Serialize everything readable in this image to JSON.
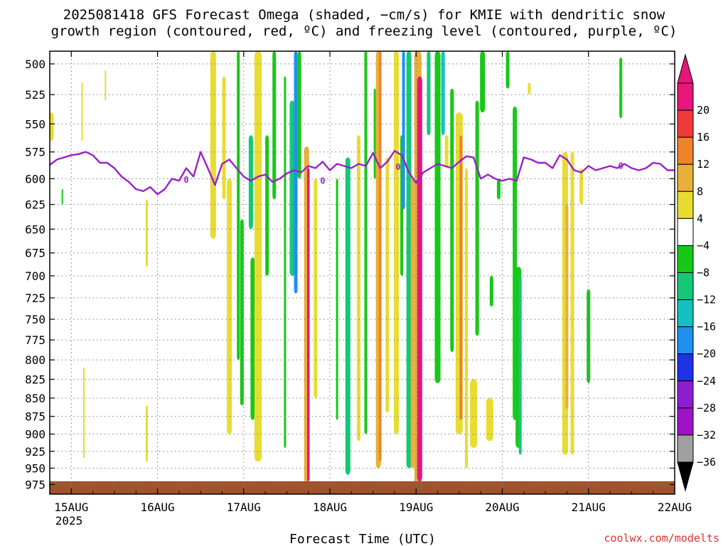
{
  "page": {
    "title_line1": "2025081418 GFS Forecast Omega (shaded, −cm/s) for KMIE with dendritic snow",
    "title_line2": "growth region (contoured, red, ºC) and freezing level (contoured, purple, ºC)",
    "credit": "coolwx.com/modelts"
  },
  "chart_data": {
    "type": "heatmap",
    "title": "2025081418 GFS Forecast Omega (shaded, −cm/s) for KMIE with dendritic snow growth region (contoured, red, ºC) and freezing level (contoured, purple, ºC)",
    "xlabel": "Forecast Time (UTC)",
    "ylabel": "",
    "x_tick_labels": [
      "15AUG",
      "16AUG",
      "17AUG",
      "18AUG",
      "19AUG",
      "20AUG",
      "21AUG",
      "22AUG"
    ],
    "x_year_label": "2025",
    "xlim_hours": [
      -6,
      168
    ],
    "y_ticks": [
      500,
      525,
      550,
      575,
      600,
      625,
      650,
      675,
      700,
      725,
      750,
      775,
      800,
      825,
      850,
      875,
      900,
      925,
      950,
      975
    ],
    "ylim": [
      490,
      990
    ],
    "y_scale": "log-pressure",
    "grid": true,
    "colorbar": {
      "labels": [
        "20",
        "16",
        "12",
        "8",
        "4",
        "−4",
        "−8",
        "−12",
        "−16",
        "−20",
        "−24",
        "−28",
        "−32",
        "−36"
      ],
      "bins": [
        {
          "from": 20,
          "to": 24,
          "color": "#e8157a"
        },
        {
          "from": 16,
          "to": 20,
          "color": "#f03a3a"
        },
        {
          "from": 12,
          "to": 16,
          "color": "#f0822a"
        },
        {
          "from": 8,
          "to": 12,
          "color": "#e8b038"
        },
        {
          "from": 4,
          "to": 8,
          "color": "#e8dc32"
        },
        {
          "from": -4,
          "to": 4,
          "color": "#ffffff"
        },
        {
          "from": -8,
          "to": -4,
          "color": "#18c818"
        },
        {
          "from": -12,
          "to": -8,
          "color": "#14c878"
        },
        {
          "from": -16,
          "to": -12,
          "color": "#14c0c0"
        },
        {
          "from": -20,
          "to": -16,
          "color": "#1e90f0"
        },
        {
          "from": -24,
          "to": -20,
          "color": "#1e32e6"
        },
        {
          "from": -28,
          "to": -24,
          "color": "#8c1ed2"
        },
        {
          "from": -32,
          "to": -28,
          "color": "#a012c8"
        },
        {
          "from": -36,
          "to": -32,
          "color": "#a0a0a0"
        }
      ],
      "over_color": "#e8157a",
      "under_color": "#000000"
    },
    "colors": {
      "freezing_level": "#9b1fc8",
      "ground": "#a0522d",
      "grid": "#7a7a7a"
    },
    "freezing_level_label": "0",
    "freezing_level": {
      "hour": [
        -6,
        -4,
        -2,
        0,
        2,
        4,
        6,
        8,
        10,
        12,
        14,
        16,
        18,
        20,
        22,
        24,
        26,
        28,
        30,
        32,
        34,
        36,
        38,
        40,
        42,
        44,
        46,
        48,
        50,
        52,
        54,
        56,
        58,
        60,
        62,
        64,
        66,
        68,
        70,
        72,
        74,
        76,
        78,
        80,
        82,
        84,
        86,
        88,
        90,
        92,
        94,
        96,
        98,
        100,
        102,
        104,
        106,
        108,
        110,
        112,
        114,
        116,
        118,
        120,
        122,
        124,
        126,
        128,
        130,
        132,
        134,
        136,
        138,
        140,
        142,
        144,
        146,
        148,
        150,
        152,
        154,
        156,
        158,
        160,
        162,
        164,
        166,
        168
      ],
      "pressure": [
        587,
        582,
        580,
        578,
        577,
        575,
        578,
        585,
        585,
        590,
        598,
        603,
        610,
        612,
        608,
        615,
        610,
        600,
        602,
        590,
        598,
        575,
        590,
        606,
        586,
        582,
        590,
        598,
        602,
        598,
        596,
        603,
        600,
        595,
        592,
        594,
        588,
        590,
        584,
        592,
        586,
        588,
        590,
        586,
        588,
        576,
        590,
        584,
        574,
        578,
        594,
        604,
        594,
        590,
        586,
        588,
        590,
        584,
        579,
        580,
        600,
        596,
        600,
        602,
        600,
        602,
        580,
        582,
        585,
        585,
        590,
        578,
        582,
        592,
        594,
        588,
        592,
        590,
        588,
        590,
        586,
        590,
        592,
        590,
        585,
        586,
        592,
        592
      ]
    },
    "omega_features": [
      {
        "hour": -5.5,
        "top": 540,
        "bottom": 565,
        "width": 1.2,
        "value": 6
      },
      {
        "hour": -2.5,
        "top": 610,
        "bottom": 625,
        "width": 0.3,
        "value": -6
      },
      {
        "hour": 3.0,
        "top": 515,
        "bottom": 565,
        "width": 0.3,
        "value": 6
      },
      {
        "hour": 9.5,
        "top": 505,
        "bottom": 530,
        "width": 0.4,
        "value": 5
      },
      {
        "hour": 21.0,
        "top": 620,
        "bottom": 690,
        "width": 0.6,
        "value": 6
      },
      {
        "hour": 21.0,
        "top": 860,
        "bottom": 940,
        "width": 0.6,
        "value": 6
      },
      {
        "hour": 3.5,
        "top": 810,
        "bottom": 935,
        "width": 0.3,
        "value": 5
      },
      {
        "hour": 39.5,
        "top": 490,
        "bottom": 660,
        "width": 1.6,
        "value": 7
      },
      {
        "hour": 42.5,
        "top": 510,
        "bottom": 620,
        "width": 1.0,
        "value": 6
      },
      {
        "hour": 44.0,
        "top": 600,
        "bottom": 900,
        "width": 1.4,
        "value": 6
      },
      {
        "hour": 46.5,
        "top": 490,
        "bottom": 800,
        "width": 0.8,
        "value": -8
      },
      {
        "hour": 47.5,
        "top": 640,
        "bottom": 860,
        "width": 1.0,
        "value": -6
      },
      {
        "hour": 50.0,
        "top": 560,
        "bottom": 650,
        "width": 1.2,
        "value": -12
      },
      {
        "hour": 50.5,
        "top": 680,
        "bottom": 880,
        "width": 1.2,
        "value": -8
      },
      {
        "hour": 52.0,
        "top": 490,
        "bottom": 940,
        "width": 2.0,
        "value": 7
      },
      {
        "hour": 54.5,
        "top": 560,
        "bottom": 700,
        "width": 1.0,
        "value": -6
      },
      {
        "hour": 56.5,
        "top": 490,
        "bottom": 620,
        "width": 1.0,
        "value": -6
      },
      {
        "hour": 59.5,
        "top": 510,
        "bottom": 920,
        "width": 0.6,
        "value": -6
      },
      {
        "hour": 61.5,
        "top": 530,
        "bottom": 700,
        "width": 1.4,
        "value": -12
      },
      {
        "hour": 62.5,
        "top": 490,
        "bottom": 720,
        "width": 1.0,
        "value": -18
      },
      {
        "hour": 63.5,
        "top": 490,
        "bottom": 600,
        "width": 1.0,
        "value": -8
      },
      {
        "hour": 65.5,
        "top": 570,
        "bottom": 980,
        "width": 1.4,
        "value": 10
      },
      {
        "hour": 66.0,
        "top": 590,
        "bottom": 970,
        "width": 0.7,
        "value": 24
      },
      {
        "hour": 68.0,
        "top": 600,
        "bottom": 850,
        "width": 1.0,
        "value": 6
      },
      {
        "hour": 74.0,
        "top": 600,
        "bottom": 880,
        "width": 0.6,
        "value": -6
      },
      {
        "hour": 77.0,
        "top": 580,
        "bottom": 960,
        "width": 1.4,
        "value": -10
      },
      {
        "hour": 80.0,
        "top": 560,
        "bottom": 910,
        "width": 1.0,
        "value": 6
      },
      {
        "hour": 82.0,
        "top": 490,
        "bottom": 900,
        "width": 0.8,
        "value": -8
      },
      {
        "hour": 84.5,
        "top": 520,
        "bottom": 600,
        "width": 0.6,
        "value": -6
      },
      {
        "hour": 85.5,
        "top": 490,
        "bottom": 950,
        "width": 1.4,
        "value": 8
      },
      {
        "hour": 86.0,
        "top": 490,
        "bottom": 940,
        "width": 0.7,
        "value": 13
      },
      {
        "hour": 88.0,
        "top": 580,
        "bottom": 870,
        "width": 1.0,
        "value": 6
      },
      {
        "hour": 90.5,
        "top": 490,
        "bottom": 900,
        "width": 1.4,
        "value": 6
      },
      {
        "hour": 92.0,
        "top": 560,
        "bottom": 700,
        "width": 0.8,
        "value": -8
      },
      {
        "hour": 92.5,
        "top": 490,
        "bottom": 630,
        "width": 0.8,
        "value": -18
      },
      {
        "hour": 94.0,
        "top": 490,
        "bottom": 950,
        "width": 1.4,
        "value": -10
      },
      {
        "hour": 95.0,
        "top": 600,
        "bottom": 950,
        "width": 1.0,
        "value": 8
      },
      {
        "hour": 96.5,
        "top": 490,
        "bottom": 980,
        "width": 2.0,
        "value": 11
      },
      {
        "hour": 97.0,
        "top": 510,
        "bottom": 970,
        "width": 1.4,
        "value": 24
      },
      {
        "hour": 99.5,
        "top": 490,
        "bottom": 560,
        "width": 1.0,
        "value": -10
      },
      {
        "hour": 102.0,
        "top": 490,
        "bottom": 830,
        "width": 1.6,
        "value": -8
      },
      {
        "hour": 103.5,
        "top": 490,
        "bottom": 560,
        "width": 1.0,
        "value": -14
      },
      {
        "hour": 104.5,
        "top": 560,
        "bottom": 590,
        "width": 1.0,
        "value": 6
      },
      {
        "hour": 106.0,
        "top": 520,
        "bottom": 790,
        "width": 1.0,
        "value": -8
      },
      {
        "hour": 108.0,
        "top": 540,
        "bottom": 900,
        "width": 2.0,
        "value": 6
      },
      {
        "hour": 108.5,
        "top": 560,
        "bottom": 880,
        "width": 0.8,
        "value": 12
      },
      {
        "hour": 110.0,
        "top": 590,
        "bottom": 950,
        "width": 0.8,
        "value": 6
      },
      {
        "hour": 112.0,
        "top": 825,
        "bottom": 920,
        "width": 2.0,
        "value": 6
      },
      {
        "hour": 113.0,
        "top": 530,
        "bottom": 770,
        "width": 1.0,
        "value": -8
      },
      {
        "hour": 114.5,
        "top": 490,
        "bottom": 540,
        "width": 1.4,
        "value": -6
      },
      {
        "hour": 116.5,
        "top": 850,
        "bottom": 910,
        "width": 2.0,
        "value": 6
      },
      {
        "hour": 117.0,
        "top": 700,
        "bottom": 735,
        "width": 1.0,
        "value": -6
      },
      {
        "hour": 119.0,
        "top": 600,
        "bottom": 620,
        "width": 1.0,
        "value": -6
      },
      {
        "hour": 121.5,
        "top": 490,
        "bottom": 520,
        "width": 1.0,
        "value": -6
      },
      {
        "hour": 123.5,
        "top": 535,
        "bottom": 880,
        "width": 1.2,
        "value": -8
      },
      {
        "hour": 124.5,
        "top": 690,
        "bottom": 920,
        "width": 1.6,
        "value": -6
      },
      {
        "hour": 125.0,
        "top": 700,
        "bottom": 930,
        "width": 0.8,
        "value": -12
      },
      {
        "hour": 127.5,
        "top": 515,
        "bottom": 525,
        "width": 0.8,
        "value": 6
      },
      {
        "hour": 137.5,
        "top": 575,
        "bottom": 930,
        "width": 1.6,
        "value": 6
      },
      {
        "hour": 138.0,
        "top": 625,
        "bottom": 865,
        "width": 0.8,
        "value": 10
      },
      {
        "hour": 139.5,
        "top": 575,
        "bottom": 930,
        "width": 1.0,
        "value": 6
      },
      {
        "hour": 142.0,
        "top": 590,
        "bottom": 625,
        "width": 1.0,
        "value": 6
      },
      {
        "hour": 144.0,
        "top": 715,
        "bottom": 830,
        "width": 1.0,
        "value": -6
      },
      {
        "hour": 153.0,
        "top": 495,
        "bottom": 545,
        "width": 0.8,
        "value": -6
      }
    ],
    "ground_level": 970
  }
}
